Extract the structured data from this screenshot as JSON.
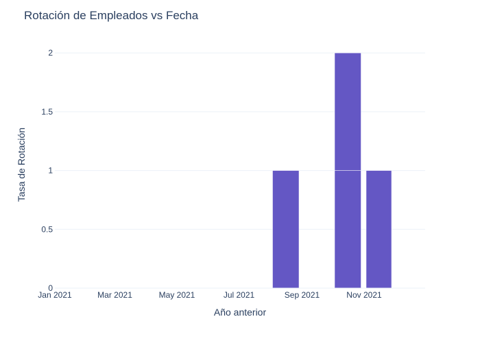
{
  "chart_data": {
    "type": "bar",
    "title": "Rotación de Empleados vs Fecha",
    "xlabel": "Año anterior",
    "ylabel": "Tasa de Rotación",
    "x_tick_labels": [
      "Jan 2021",
      "Mar 2021",
      "May 2021",
      "Jul 2021",
      "Sep 2021",
      "Nov 2021"
    ],
    "y_tick_labels": [
      "0",
      "0.5",
      "1",
      "1.5",
      "2"
    ],
    "ylim": [
      0,
      2.1
    ],
    "x_range": [
      "2021-01-01",
      "2021-12-31"
    ],
    "grid": true,
    "bar_color": "#6457c4",
    "bars": [
      {
        "start": "2021-08-01",
        "end": "2021-08-31",
        "values": [
          1
        ]
      },
      {
        "start": "2021-10-01",
        "end": "2021-10-31",
        "values": [
          1,
          1
        ]
      },
      {
        "start": "2021-11-01",
        "end": "2021-11-30",
        "values": [
          1
        ]
      }
    ]
  }
}
